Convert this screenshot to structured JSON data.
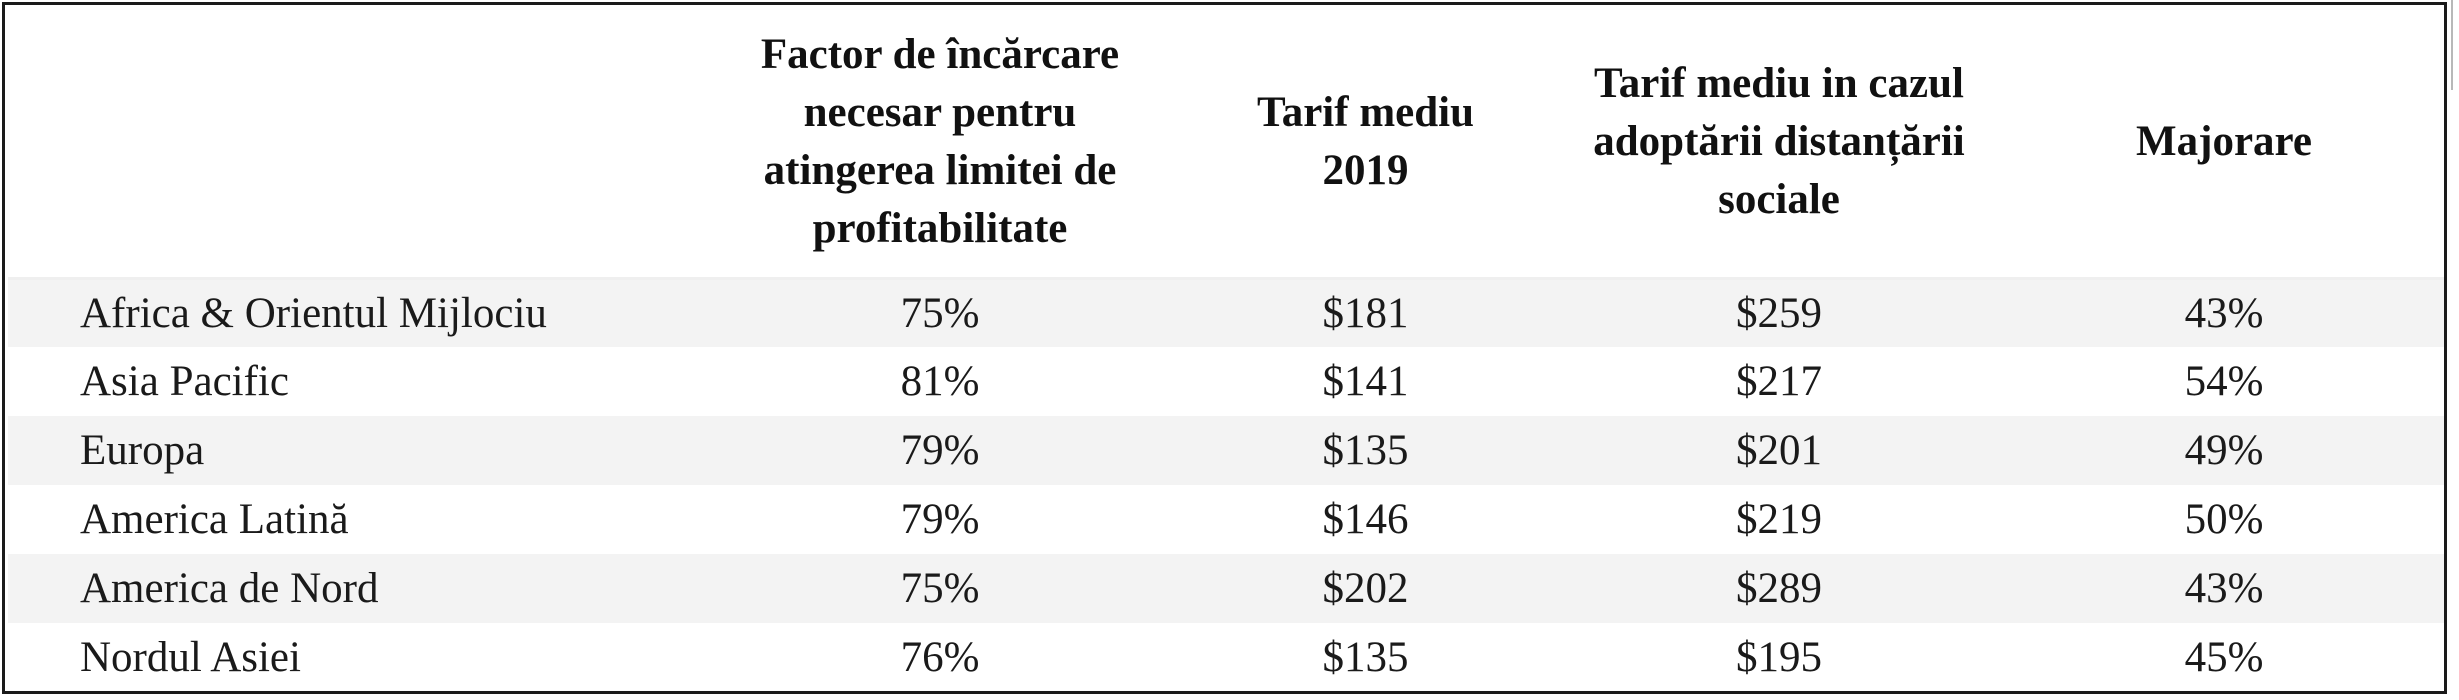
{
  "table": {
    "headers": [
      "",
      "Factor de încărcare necesar pentru atingerea limitei de profitabilitate",
      "Tarif mediu 2019",
      "Tarif mediu in cazul adoptării distanțării sociale",
      "Majorare"
    ],
    "header_lines": [
      [],
      [
        "Factor de încărcare",
        "necesar pentru",
        "atingerea limitei de",
        "profitabilitate"
      ],
      [
        "Tarif mediu",
        "2019"
      ],
      [
        "Tarif mediu in cazul",
        "adoptării distanțării",
        "sociale"
      ],
      [
        "Majorare"
      ]
    ],
    "rows": [
      [
        "Africa & Orientul Mijlociu",
        "75%",
        "$181",
        "$259",
        "43%"
      ],
      [
        "Asia Pacific",
        "81%",
        "$141",
        "$217",
        "54%"
      ],
      [
        "Europa",
        "79%",
        "$135",
        "$201",
        "49%"
      ],
      [
        "America Latină",
        "79%",
        "$146",
        "$219",
        "50%"
      ],
      [
        "America de Nord",
        "75%",
        "$202",
        "$289",
        "43%"
      ],
      [
        "Nordul Asiei",
        "76%",
        "$135",
        "$195",
        "45%"
      ]
    ]
  }
}
